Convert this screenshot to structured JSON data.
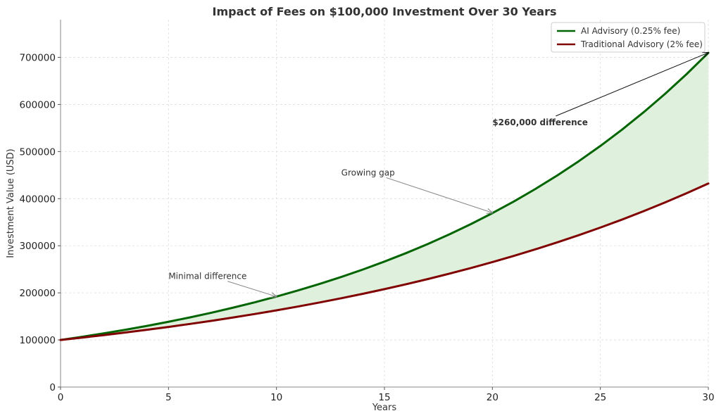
{
  "chart_data": {
    "type": "area",
    "title": "Impact of Fees on $100,000 Investment Over 30 Years",
    "xlabel": "Years",
    "ylabel": "Investment Value (USD)",
    "xlim": [
      0,
      30
    ],
    "ylim": [
      0,
      780000
    ],
    "xticks": [
      0,
      5,
      10,
      15,
      20,
      25,
      30
    ],
    "yticks": [
      0,
      100000,
      200000,
      300000,
      400000,
      500000,
      600000,
      700000
    ],
    "grid": true,
    "legend_position": "top-right",
    "series": [
      {
        "name": "AI Advisory (0.25% fee)",
        "color": "#006400",
        "x": [
          0,
          1,
          2,
          3,
          4,
          5,
          6,
          7,
          8,
          9,
          10,
          11,
          12,
          13,
          14,
          15,
          16,
          17,
          18,
          19,
          20,
          21,
          22,
          23,
          24,
          25,
          26,
          27,
          28,
          29,
          30
        ],
        "values": [
          100000,
          106750,
          113956,
          121648,
          129859,
          138625,
          147982,
          157971,
          168634,
          180017,
          192168,
          205139,
          218986,
          233768,
          249547,
          266392,
          284373,
          303569,
          324060,
          345934,
          369284,
          394211,
          420820,
          449226,
          479548,
          511918,
          546472,
          583358,
          622735,
          664770,
          709642
        ]
      },
      {
        "name": "Traditional Advisory (2% fee)",
        "color": "#800000",
        "x": [
          0,
          1,
          2,
          3,
          4,
          5,
          6,
          7,
          8,
          9,
          10,
          11,
          12,
          13,
          14,
          15,
          16,
          17,
          18,
          19,
          20,
          21,
          22,
          23,
          24,
          25,
          26,
          27,
          28,
          29,
          30
        ],
        "values": [
          100000,
          105000,
          110250,
          115763,
          121551,
          127628,
          134010,
          140710,
          147746,
          155133,
          162889,
          171034,
          179586,
          188565,
          197993,
          207893,
          218287,
          229202,
          240662,
          252695,
          265330,
          278596,
          292526,
          307152,
          322510,
          338635,
          355567,
          373346,
          392013,
          411614,
          432194
        ]
      }
    ],
    "fill_between": {
      "color": "#dff0dc"
    },
    "annotations": [
      {
        "text": "Minimal difference",
        "text_x": 5,
        "text_y": 235000,
        "arrow_x": 10,
        "arrow_y": 192000,
        "bold": false
      },
      {
        "text": "Growing gap",
        "text_x": 13,
        "text_y": 455000,
        "arrow_x": 20,
        "arrow_y": 370000,
        "bold": false
      },
      {
        "text": "$260,000 difference",
        "text_x": 20,
        "text_y": 562000,
        "arrow_x": 30,
        "arrow_y": 710000,
        "bold": true
      }
    ]
  }
}
